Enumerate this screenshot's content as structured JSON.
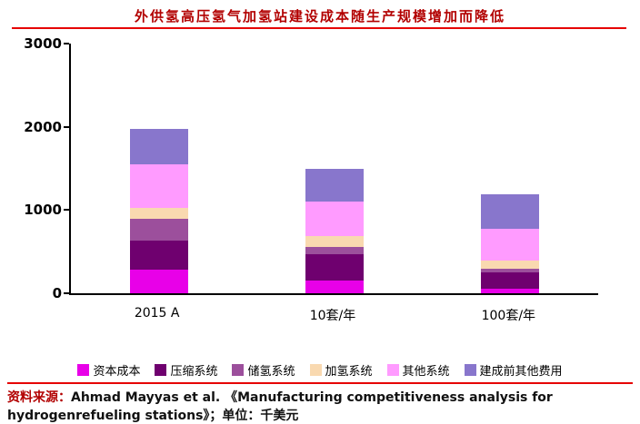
{
  "title": "外供氢高压氢气加氢站建设成本随生产规模增加而降低",
  "chart_data": {
    "type": "bar",
    "stacked": true,
    "title": "外供氢高压氢气加氢站建设成本随生产规模增加而降低",
    "xlabel": "",
    "ylabel": "",
    "unit": "千美元",
    "ylim": [
      0,
      3000
    ],
    "yticks": [
      0,
      1000,
      2000,
      3000
    ],
    "grid": false,
    "legend_position": "bottom",
    "categories": [
      "2015 A",
      "10套/年",
      "100套/年"
    ],
    "series": [
      {
        "name": "资本成本",
        "color": "#e800e8",
        "values": [
          280,
          150,
          50
        ]
      },
      {
        "name": "压缩系统",
        "color": "#6f006f",
        "values": [
          350,
          320,
          200
        ]
      },
      {
        "name": "储氢系统",
        "color": "#9c4f9c",
        "values": [
          270,
          90,
          50
        ]
      },
      {
        "name": "加氢系统",
        "color": "#f9d9b0",
        "values": [
          130,
          130,
          90
        ]
      },
      {
        "name": "其他系统",
        "color": "#ff9bff",
        "values": [
          520,
          410,
          380
        ]
      },
      {
        "name": "建成前其他费用",
        "color": "#8876cc",
        "values": [
          420,
          400,
          420
        ]
      }
    ]
  },
  "source": {
    "label": "资料来源：",
    "text": "Ahmad Mayyas et al. 《Manufacturing competitiveness analysis for hydrogenrefueling stations》；单位：千美元"
  }
}
